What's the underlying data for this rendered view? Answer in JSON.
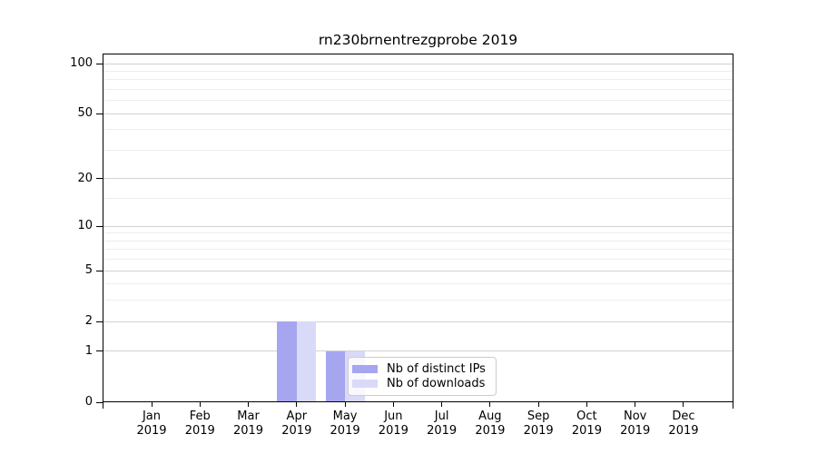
{
  "page": {
    "background": "#ffffff"
  },
  "chart_data": {
    "type": "bar",
    "title": "rn230brnentrezgprobe 2019",
    "x": {
      "categories": [
        "Jan",
        "Feb",
        "Mar",
        "Apr",
        "May",
        "Jun",
        "Jul",
        "Aug",
        "Sep",
        "Oct",
        "Nov",
        "Dec"
      ],
      "year": "2019"
    },
    "y_axis": {
      "scale": "log1p",
      "tick_values": [
        0,
        1,
        2,
        5,
        10,
        20,
        50,
        100
      ],
      "minor_gridline_values": [
        3,
        4,
        6,
        7,
        8,
        9,
        15,
        30,
        40,
        60,
        70,
        80,
        90
      ],
      "range": [
        0,
        115
      ]
    },
    "series": [
      {
        "name": "Nb of distinct IPs",
        "color": "#a5a5f0",
        "values": [
          0,
          0,
          0,
          2,
          1,
          0,
          0,
          0,
          0,
          0,
          0,
          0
        ]
      },
      {
        "name": "Nb of downloads",
        "color": "#d9d9f8",
        "values": [
          0,
          0,
          0,
          2,
          1,
          0,
          0,
          0,
          0,
          0,
          0,
          0
        ]
      }
    ],
    "legend": {
      "position": "lower-center",
      "background": "rgba(255,255,255,0.8)",
      "border_color": "#cccccc"
    },
    "grid": {
      "major_color": "#d2d2d2",
      "minor_color": "#ededed"
    }
  }
}
